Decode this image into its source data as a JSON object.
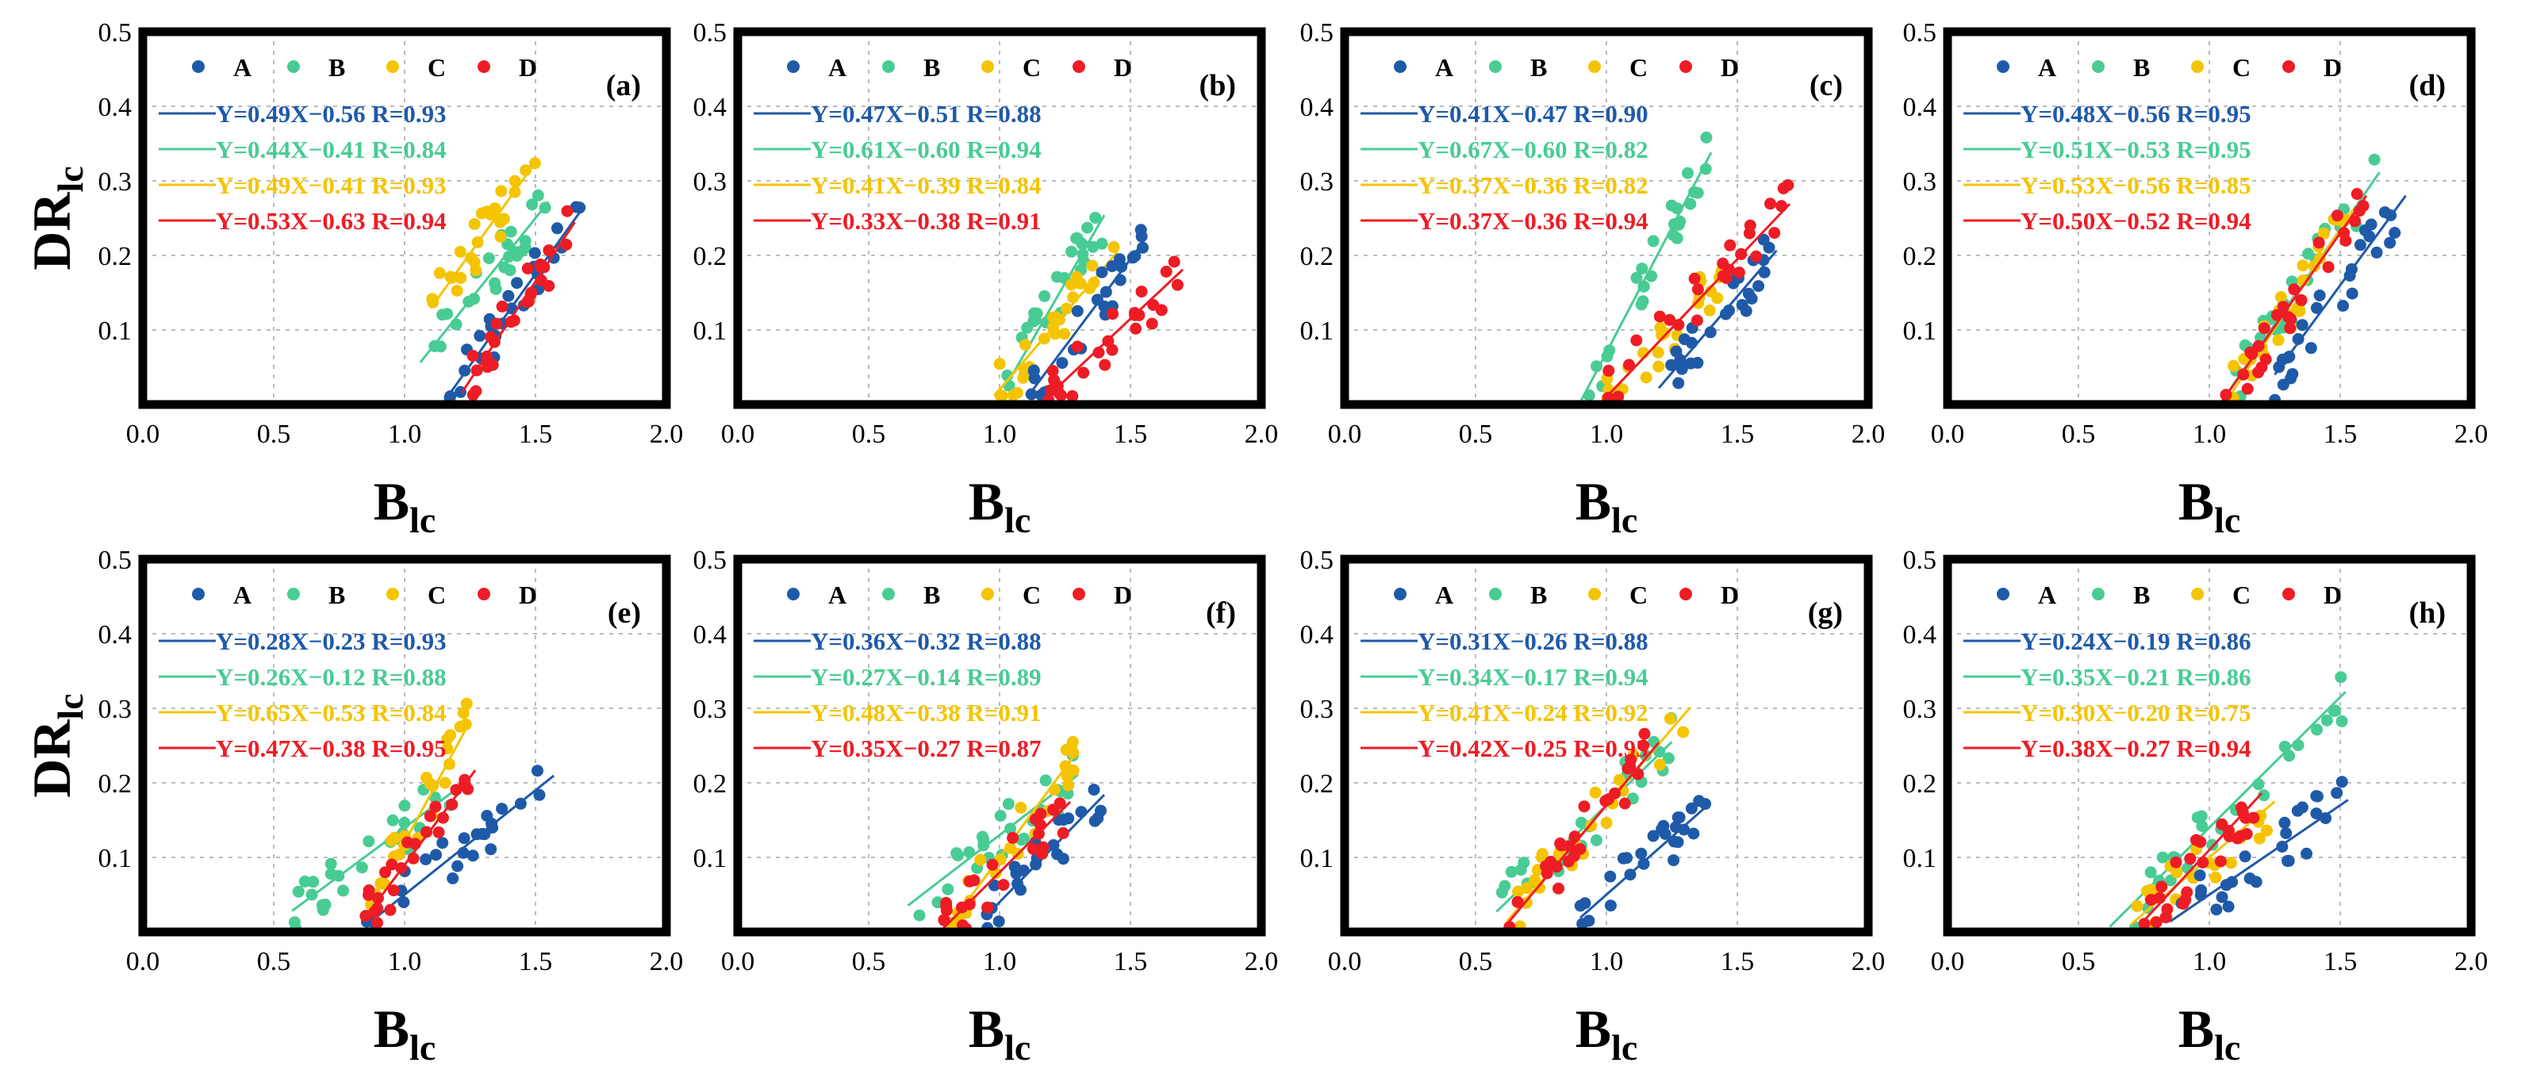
{
  "colors": {
    "A": "#1f5aa8",
    "B": "#48cc94",
    "C": "#f5c400",
    "D": "#ee1c25"
  },
  "labels": {
    "series": [
      "A",
      "B",
      "C",
      "D"
    ],
    "y_title_main": "DR",
    "y_title_sub": "lc",
    "x_title_main": "B",
    "x_title_sub": "lc"
  },
  "chart_data": [
    {
      "type": "scatter",
      "panel": "(a)",
      "xlim": [
        0.0,
        2.0
      ],
      "ylim": [
        0.0,
        0.5
      ],
      "x_ticks": [
        "0.0",
        "0.5",
        "1.0",
        "1.5",
        "2.0"
      ],
      "y_ticks": [
        "0.1",
        "0.2",
        "0.3",
        "0.4",
        "0.5"
      ],
      "grid": true,
      "legend": "top-left",
      "xlabel": "Blc",
      "ylabel": "DRlc",
      "series": [
        {
          "name": "A",
          "fit": "Y=0.49X−0.56 R=0.93",
          "slope": 0.49,
          "intercept": -0.56,
          "x_range": [
            1.17,
            1.67
          ]
        },
        {
          "name": "B",
          "fit": "Y=0.44X−0.41 R=0.84",
          "slope": 0.44,
          "intercept": -0.41,
          "x_range": [
            1.06,
            1.55
          ]
        },
        {
          "name": "C",
          "fit": "Y=0.49X−0.41 R=0.93",
          "slope": 0.49,
          "intercept": -0.41,
          "x_range": [
            1.1,
            1.5
          ]
        },
        {
          "name": "D",
          "fit": "Y=0.53X−0.63 R=0.94",
          "slope": 0.53,
          "intercept": -0.63,
          "x_range": [
            1.22,
            1.65
          ]
        }
      ]
    },
    {
      "type": "scatter",
      "panel": "(b)",
      "xlim": [
        0.0,
        2.0
      ],
      "ylim": [
        0.0,
        0.5
      ],
      "x_ticks": [
        "0.0",
        "0.5",
        "1.0",
        "1.5",
        "2.0"
      ],
      "y_ticks": [
        "0.1",
        "0.2",
        "0.3",
        "0.4",
        "0.5"
      ],
      "grid": true,
      "legend": "top-left",
      "xlabel": "Blc",
      "ylabel": "DRlc",
      "series": [
        {
          "name": "A",
          "fit": "Y=0.47X−0.51 R=0.88",
          "slope": 0.47,
          "intercept": -0.51,
          "x_range": [
            1.12,
            1.55
          ]
        },
        {
          "name": "B",
          "fit": "Y=0.61X−0.60 R=0.94",
          "slope": 0.61,
          "intercept": -0.6,
          "x_range": [
            1.02,
            1.4
          ]
        },
        {
          "name": "C",
          "fit": "Y=0.41X−0.39 R=0.84",
          "slope": 0.41,
          "intercept": -0.39,
          "x_range": [
            0.98,
            1.45
          ]
        },
        {
          "name": "D",
          "fit": "Y=0.33X−0.38 R=0.91",
          "slope": 0.33,
          "intercept": -0.38,
          "x_range": [
            1.18,
            1.7
          ]
        }
      ]
    },
    {
      "type": "scatter",
      "panel": "(c)",
      "xlim": [
        0.0,
        2.0
      ],
      "ylim": [
        0.0,
        0.5
      ],
      "x_ticks": [
        "0.0",
        "0.5",
        "1.0",
        "1.5",
        "2.0"
      ],
      "y_ticks": [
        "0.1",
        "0.2",
        "0.3",
        "0.4",
        "0.5"
      ],
      "grid": true,
      "legend": "top-left",
      "xlabel": "Blc",
      "ylabel": "DRlc",
      "series": [
        {
          "name": "A",
          "fit": "Y=0.41X−0.47 R=0.90",
          "slope": 0.41,
          "intercept": -0.47,
          "x_range": [
            1.2,
            1.65
          ]
        },
        {
          "name": "B",
          "fit": "Y=0.67X−0.60 R=0.82",
          "slope": 0.67,
          "intercept": -0.6,
          "x_range": [
            0.9,
            1.4
          ]
        },
        {
          "name": "C",
          "fit": "Y=0.37X−0.36 R=0.82",
          "slope": 0.37,
          "intercept": -0.36,
          "x_range": [
            1.0,
            1.45
          ]
        },
        {
          "name": "D",
          "fit": "Y=0.37X−0.36 R=0.94",
          "slope": 0.37,
          "intercept": -0.36,
          "x_range": [
            1.0,
            1.7
          ]
        }
      ]
    },
    {
      "type": "scatter",
      "panel": "(d)",
      "xlim": [
        0.0,
        2.0
      ],
      "ylim": [
        0.0,
        0.5
      ],
      "x_ticks": [
        "0.0",
        "0.5",
        "1.0",
        "1.5",
        "2.0"
      ],
      "y_ticks": [
        "0.1",
        "0.2",
        "0.3",
        "0.4",
        "0.5"
      ],
      "grid": true,
      "legend": "top-left",
      "xlabel": "Blc",
      "ylabel": "DRlc",
      "series": [
        {
          "name": "A",
          "fit": "Y=0.48X−0.56 R=0.95",
          "slope": 0.48,
          "intercept": -0.56,
          "x_range": [
            1.25,
            1.75
          ]
        },
        {
          "name": "B",
          "fit": "Y=0.51X−0.53 R=0.95",
          "slope": 0.51,
          "intercept": -0.53,
          "x_range": [
            1.07,
            1.65
          ]
        },
        {
          "name": "C",
          "fit": "Y=0.53X−0.56 R=0.85",
          "slope": 0.53,
          "intercept": -0.56,
          "x_range": [
            1.08,
            1.55
          ]
        },
        {
          "name": "D",
          "fit": "Y=0.50X−0.52 R=0.94",
          "slope": 0.5,
          "intercept": -0.52,
          "x_range": [
            1.05,
            1.6
          ]
        }
      ]
    },
    {
      "type": "scatter",
      "panel": "(e)",
      "xlim": [
        0.0,
        2.0
      ],
      "ylim": [
        0.0,
        0.5
      ],
      "x_ticks": [
        "0.0",
        "0.5",
        "1.0",
        "1.5",
        "2.0"
      ],
      "y_ticks": [
        "0.1",
        "0.2",
        "0.3",
        "0.4",
        "0.5"
      ],
      "grid": true,
      "legend": "top-left",
      "xlabel": "Blc",
      "ylabel": "DRlc",
      "series": [
        {
          "name": "A",
          "fit": "Y=0.28X−0.23 R=0.93",
          "slope": 0.28,
          "intercept": -0.23,
          "x_range": [
            0.85,
            1.57
          ]
        },
        {
          "name": "B",
          "fit": "Y=0.26X−0.12 R=0.88",
          "slope": 0.26,
          "intercept": -0.12,
          "x_range": [
            0.57,
            1.22
          ]
        },
        {
          "name": "C",
          "fit": "Y=0.65X−0.53 R=0.84",
          "slope": 0.65,
          "intercept": -0.53,
          "x_range": [
            0.85,
            1.25
          ]
        },
        {
          "name": "D",
          "fit": "Y=0.47X−0.38 R=0.95",
          "slope": 0.47,
          "intercept": -0.38,
          "x_range": [
            0.85,
            1.27
          ]
        }
      ]
    },
    {
      "type": "scatter",
      "panel": "(f)",
      "xlim": [
        0.0,
        2.0
      ],
      "ylim": [
        0.0,
        0.5
      ],
      "x_ticks": [
        "0.0",
        "0.5",
        "1.0",
        "1.5",
        "2.0"
      ],
      "y_ticks": [
        "0.1",
        "0.2",
        "0.3",
        "0.4",
        "0.5"
      ],
      "grid": true,
      "legend": "top-left",
      "xlabel": "Blc",
      "ylabel": "DRlc",
      "series": [
        {
          "name": "A",
          "fit": "Y=0.36X−0.32 R=0.88",
          "slope": 0.36,
          "intercept": -0.32,
          "x_range": [
            0.95,
            1.4
          ]
        },
        {
          "name": "B",
          "fit": "Y=0.27X−0.14 R=0.89",
          "slope": 0.27,
          "intercept": -0.14,
          "x_range": [
            0.65,
            1.3
          ]
        },
        {
          "name": "C",
          "fit": "Y=0.48X−0.38 R=0.91",
          "slope": 0.48,
          "intercept": -0.38,
          "x_range": [
            0.8,
            1.3
          ]
        },
        {
          "name": "D",
          "fit": "Y=0.35X−0.27 R=0.87",
          "slope": 0.35,
          "intercept": -0.27,
          "x_range": [
            0.78,
            1.27
          ]
        }
      ]
    },
    {
      "type": "scatter",
      "panel": "(g)",
      "xlim": [
        0.0,
        2.0
      ],
      "ylim": [
        0.0,
        0.5
      ],
      "x_ticks": [
        "0.0",
        "0.5",
        "1.0",
        "1.5",
        "2.0"
      ],
      "y_ticks": [
        "0.1",
        "0.2",
        "0.3",
        "0.4",
        "0.5"
      ],
      "grid": true,
      "legend": "top-left",
      "xlabel": "Blc",
      "ylabel": "DRlc",
      "series": [
        {
          "name": "A",
          "fit": "Y=0.31X−0.26 R=0.88",
          "slope": 0.31,
          "intercept": -0.26,
          "x_range": [
            0.9,
            1.38
          ]
        },
        {
          "name": "B",
          "fit": "Y=0.34X−0.17 R=0.94",
          "slope": 0.34,
          "intercept": -0.17,
          "x_range": [
            0.58,
            1.25
          ]
        },
        {
          "name": "C",
          "fit": "Y=0.41X−0.24 R=0.92",
          "slope": 0.41,
          "intercept": -0.24,
          "x_range": [
            0.62,
            1.32
          ]
        },
        {
          "name": "D",
          "fit": "Y=0.42X−0.25 R=0.95",
          "slope": 0.42,
          "intercept": -0.25,
          "x_range": [
            0.62,
            1.2
          ]
        }
      ]
    },
    {
      "type": "scatter",
      "panel": "(h)",
      "xlim": [
        0.0,
        2.0
      ],
      "ylim": [
        0.0,
        0.5
      ],
      "x_ticks": [
        "0.0",
        "0.5",
        "1.0",
        "1.5",
        "2.0"
      ],
      "y_ticks": [
        "0.1",
        "0.2",
        "0.3",
        "0.4",
        "0.5"
      ],
      "grid": true,
      "legend": "top-left",
      "xlabel": "Blc",
      "ylabel": "DRlc",
      "series": [
        {
          "name": "A",
          "fit": "Y=0.24X−0.19 R=0.86",
          "slope": 0.24,
          "intercept": -0.19,
          "x_range": [
            0.85,
            1.53
          ]
        },
        {
          "name": "B",
          "fit": "Y=0.35X−0.21 R=0.86",
          "slope": 0.35,
          "intercept": -0.21,
          "x_range": [
            0.62,
            1.52
          ]
        },
        {
          "name": "C",
          "fit": "Y=0.30X−0.20 R=0.75",
          "slope": 0.3,
          "intercept": -0.2,
          "x_range": [
            0.7,
            1.25
          ]
        },
        {
          "name": "D",
          "fit": "Y=0.38X−0.27 R=0.94",
          "slope": 0.38,
          "intercept": -0.27,
          "x_range": [
            0.75,
            1.2
          ]
        }
      ]
    }
  ]
}
